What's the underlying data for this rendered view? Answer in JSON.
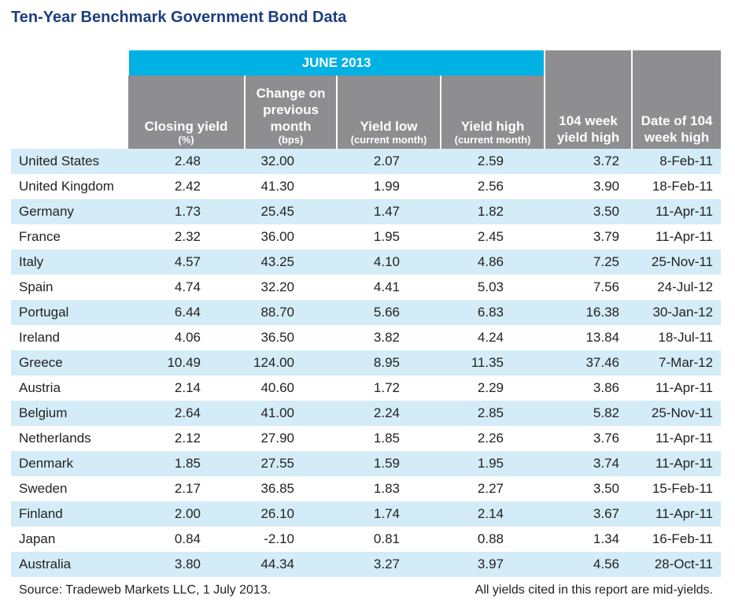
{
  "title": "Ten-Year Benchmark Government Bond Data",
  "chart_data": {
    "type": "table",
    "group_header": "JUNE 2013",
    "columns": [
      {
        "label": "",
        "sub": ""
      },
      {
        "label": "Closing yield",
        "sub": "(%)"
      },
      {
        "label": "Change on previous month",
        "sub": "(bps)"
      },
      {
        "label": "Yield low",
        "sub": "(current month)"
      },
      {
        "label": "Yield high",
        "sub": "(current month)"
      },
      {
        "label": "104 week yield high",
        "sub": ""
      },
      {
        "label": "Date of 104 week high",
        "sub": ""
      }
    ],
    "rows": [
      [
        "United States",
        "2.48",
        "32.00",
        "2.07",
        "2.59",
        "3.72",
        "8-Feb-11"
      ],
      [
        "United Kingdom",
        "2.42",
        "41.30",
        "1.99",
        "2.56",
        "3.90",
        "18-Feb-11"
      ],
      [
        "Germany",
        "1.73",
        "25.45",
        "1.47",
        "1.82",
        "3.50",
        "11-Apr-11"
      ],
      [
        "France",
        "2.32",
        "36.00",
        "1.95",
        "2.45",
        "3.79",
        "11-Apr-11"
      ],
      [
        "Italy",
        "4.57",
        "43.25",
        "4.10",
        "4.86",
        "7.25",
        "25-Nov-11"
      ],
      [
        "Spain",
        "4.74",
        "32.20",
        "4.41",
        "5.03",
        "7.56",
        "24-Jul-12"
      ],
      [
        "Portugal",
        "6.44",
        "88.70",
        "5.66",
        "6.83",
        "16.38",
        "30-Jan-12"
      ],
      [
        "Ireland",
        "4.06",
        "36.50",
        "3.82",
        "4.24",
        "13.84",
        "18-Jul-11"
      ],
      [
        "Greece",
        "10.49",
        "124.00",
        "8.95",
        "11.35",
        "37.46",
        "7-Mar-12"
      ],
      [
        "Austria",
        "2.14",
        "40.60",
        "1.72",
        "2.29",
        "3.86",
        "11-Apr-11"
      ],
      [
        "Belgium",
        "2.64",
        "41.00",
        "2.24",
        "2.85",
        "5.82",
        "25-Nov-11"
      ],
      [
        "Netherlands",
        "2.12",
        "27.90",
        "1.85",
        "2.26",
        "3.76",
        "11-Apr-11"
      ],
      [
        "Denmark",
        "1.85",
        "27.55",
        "1.59",
        "1.95",
        "3.74",
        "11-Apr-11"
      ],
      [
        "Sweden",
        "2.17",
        "36.85",
        "1.83",
        "2.27",
        "3.50",
        "15-Feb-11"
      ],
      [
        "Finland",
        "2.00",
        "26.10",
        "1.74",
        "2.14",
        "3.67",
        "11-Apr-11"
      ],
      [
        "Japan",
        "0.84",
        "-2.10",
        "0.81",
        "0.88",
        "1.34",
        "16-Feb-11"
      ],
      [
        "Australia",
        "3.80",
        "44.34",
        "3.27",
        "3.97",
        "4.56",
        "28-Oct-11"
      ]
    ]
  },
  "footer": {
    "source": "Source: Tradeweb Markets LLC, 1 July 2013.",
    "note": "All yields cited in this report are mid-yields."
  },
  "colors": {
    "title": "#1d3f7e",
    "group_header_bg": "#00b1e3",
    "column_header_bg": "#8e8e91",
    "row_stripe": "#d4ecf7"
  }
}
